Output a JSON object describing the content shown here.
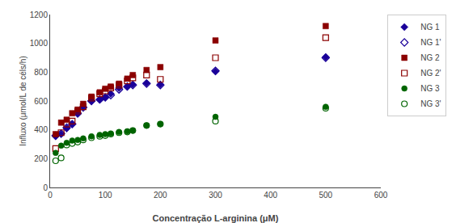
{
  "chart_data": {
    "type": "scatter",
    "x_label": "Concentração L-arginina (μM)",
    "y_label": "Influxo (μmol/L de céls/h)",
    "xlim": [
      0,
      600
    ],
    "ylim": [
      0,
      1200
    ],
    "xticks": [
      0,
      100,
      200,
      300,
      400,
      500,
      600
    ],
    "yticks": [
      0,
      200,
      400,
      600,
      800,
      1000,
      1200
    ],
    "grid": false,
    "legend": "upper right",
    "series": [
      {
        "name": "NG 1",
        "color": "#1a0099",
        "marker": "diamond",
        "x": [
          10,
          20,
          30,
          40,
          50,
          60,
          75,
          90,
          100,
          110,
          125,
          140,
          150,
          175,
          200,
          300,
          500
        ],
        "values": [
          355,
          370,
          410,
          440,
          510,
          560,
          600,
          610,
          625,
          650,
          690,
          700,
          715,
          725,
          715,
          805,
          905
        ]
      },
      {
        "name": "NG 1'",
        "color": "#1a0099",
        "marker": "diamond-open",
        "x": [
          10,
          20,
          30,
          40,
          50,
          60,
          75,
          90,
          100,
          110,
          125,
          140,
          150,
          175,
          200,
          300,
          500
        ],
        "values": [
          360,
          375,
          415,
          440,
          515,
          555,
          600,
          610,
          625,
          640,
          680,
          700,
          710,
          720,
          710,
          810,
          900
        ]
      },
      {
        "name": "NG 2",
        "color": "#8b0000",
        "marker": "square",
        "x": [
          10,
          20,
          30,
          40,
          50,
          60,
          75,
          90,
          100,
          110,
          125,
          140,
          150,
          175,
          200,
          300,
          500
        ],
        "values": [
          370,
          450,
          470,
          515,
          540,
          580,
          630,
          660,
          685,
          700,
          720,
          755,
          780,
          815,
          835,
          1020,
          1120
        ]
      },
      {
        "name": "NG 2'",
        "color": "#8b0000",
        "marker": "square-open",
        "x": [
          10,
          20,
          30,
          40,
          50,
          60,
          75,
          90,
          100,
          110,
          125,
          140,
          150,
          175,
          200,
          300,
          500
        ],
        "values": [
          270,
          380,
          440,
          460,
          530,
          560,
          620,
          650,
          670,
          690,
          710,
          740,
          760,
          780,
          750,
          900,
          1040
        ]
      },
      {
        "name": "NG 3",
        "color": "#006400",
        "marker": "circle",
        "x": [
          10,
          20,
          30,
          40,
          50,
          60,
          75,
          90,
          100,
          110,
          125,
          140,
          150,
          175,
          200,
          300,
          500
        ],
        "values": [
          240,
          290,
          310,
          325,
          330,
          340,
          355,
          365,
          370,
          375,
          385,
          390,
          395,
          430,
          440,
          490,
          560
        ]
      },
      {
        "name": "NG 3'",
        "color": "#006400",
        "marker": "circle-open",
        "x": [
          10,
          20,
          30,
          40,
          50,
          60,
          75,
          90,
          100,
          110,
          125,
          140,
          150,
          175,
          200,
          300,
          500
        ],
        "values": [
          185,
          205,
          295,
          305,
          315,
          330,
          345,
          355,
          360,
          370,
          380,
          385,
          395,
          430,
          440,
          460,
          550
        ]
      }
    ]
  }
}
